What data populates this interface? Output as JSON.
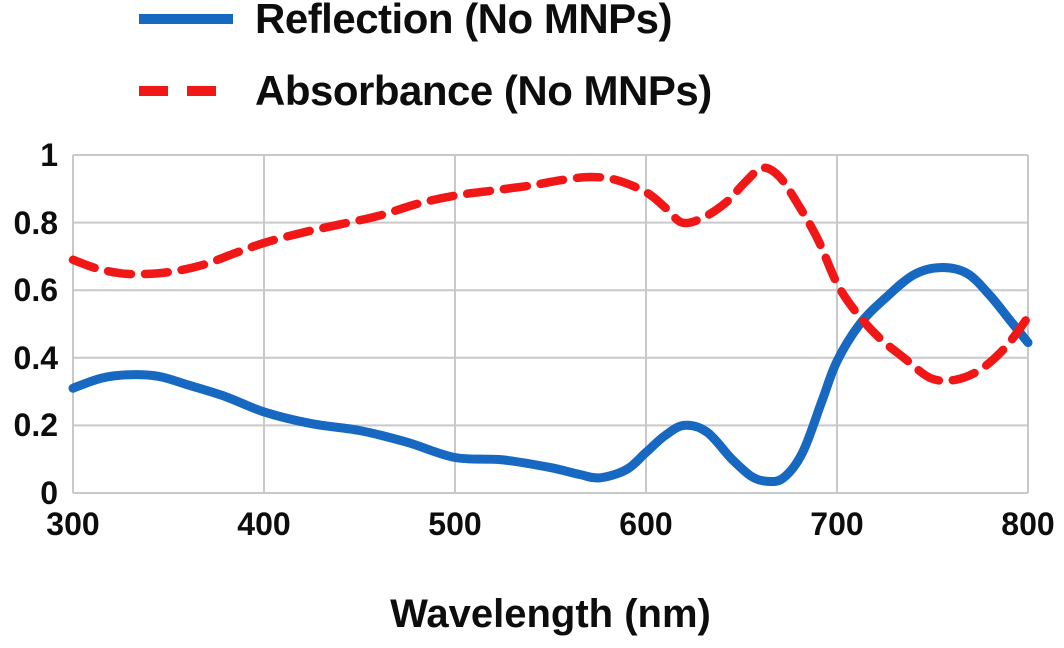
{
  "figure": {
    "background": "#ffffff"
  },
  "legend": {
    "items": [
      {
        "label": "Reflection (No MNPs)",
        "color": "#1668c1",
        "style": "solid"
      },
      {
        "label": "Absorbance (No MNPs)",
        "color": "#f11717",
        "style": "dashed"
      }
    ]
  },
  "chart_data": {
    "type": "line",
    "title": "",
    "xlabel": "Wavelength (nm)",
    "ylabel": "",
    "x_range": [
      300,
      800
    ],
    "y_range": [
      0,
      1
    ],
    "x_ticks": [
      300,
      400,
      500,
      600,
      700,
      800
    ],
    "y_ticks": [
      0,
      0.2,
      0.4,
      0.6,
      0.8,
      1
    ],
    "y_tick_labels": [
      "0",
      "0.2",
      "0.4",
      "0.6",
      "0.8",
      "1"
    ],
    "grid": true,
    "grid_color": "#c9c9c9",
    "legend_position": "top-left",
    "series": [
      {
        "name": "Reflection (No MNPs)",
        "color": "#1668c1",
        "line_style": "solid",
        "x": [
          300,
          315,
          330,
          345,
          360,
          380,
          400,
          425,
          450,
          475,
          500,
          525,
          550,
          565,
          576,
          590,
          600,
          610,
          620,
          632,
          645,
          655,
          663,
          672,
          682,
          692,
          700,
          712,
          725,
          740,
          754,
          768,
          780,
          790,
          800
        ],
        "values": [
          0.31,
          0.34,
          0.35,
          0.345,
          0.32,
          0.285,
          0.24,
          0.205,
          0.185,
          0.15,
          0.105,
          0.098,
          0.075,
          0.055,
          0.045,
          0.07,
          0.12,
          0.17,
          0.2,
          0.18,
          0.1,
          0.05,
          0.035,
          0.045,
          0.12,
          0.27,
          0.39,
          0.5,
          0.575,
          0.645,
          0.667,
          0.65,
          0.585,
          0.515,
          0.445
        ]
      },
      {
        "name": "Absorbance (No MNPs)",
        "color": "#f11717",
        "line_style": "dashed",
        "x": [
          300,
          312,
          325,
          338,
          352,
          368,
          385,
          400,
          420,
          440,
          460,
          480,
          500,
          520,
          540,
          555,
          571,
          585,
          600,
          610,
          619,
          630,
          642,
          652,
          661,
          670,
          680,
          690,
          700,
          710,
          722,
          735,
          749,
          762,
          775,
          788,
          800
        ],
        "values": [
          0.69,
          0.665,
          0.65,
          0.648,
          0.655,
          0.675,
          0.71,
          0.74,
          0.77,
          0.795,
          0.82,
          0.855,
          0.88,
          0.895,
          0.91,
          0.925,
          0.935,
          0.925,
          0.89,
          0.845,
          0.8,
          0.815,
          0.86,
          0.92,
          0.962,
          0.935,
          0.85,
          0.75,
          0.62,
          0.535,
          0.46,
          0.4,
          0.34,
          0.335,
          0.365,
          0.43,
          0.52
        ]
      }
    ]
  }
}
